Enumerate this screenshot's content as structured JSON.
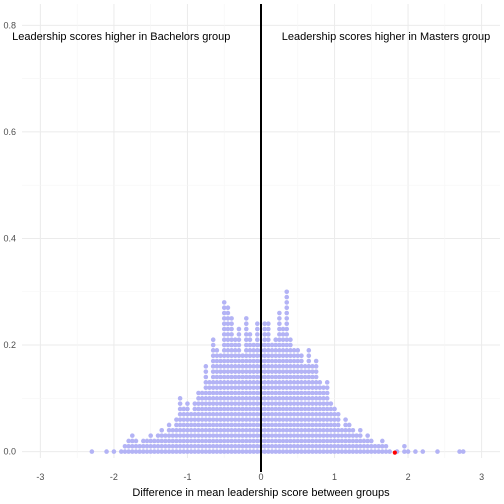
{
  "chart_data": {
    "type": "scatter",
    "subtype": "dotplot",
    "title": "",
    "xlabel": "Difference in mean leadership score between groups",
    "ylabel": "",
    "xlim": [
      -3.25,
      3.25
    ],
    "ylim": [
      -0.012,
      0.84
    ],
    "x_ticks": [
      -3,
      -2,
      -1,
      0,
      1,
      2,
      3
    ],
    "x_tick_labels": [
      "-3",
      "-2",
      "-1",
      "0",
      "1",
      "2",
      "3"
    ],
    "y_ticks": [
      0.0,
      0.2,
      0.4,
      0.6,
      0.8
    ],
    "y_tick_labels": [
      "0.0",
      "0.2",
      "0.4",
      "0.6",
      "0.8"
    ],
    "grid": true,
    "legend": "none",
    "dot_color": "#b3b3f5",
    "highlight_color": "#ff0000",
    "reference_line_x": 0,
    "dot_step": 0.01,
    "bins": [
      {
        "x": -2.3,
        "count": 1
      },
      {
        "x": -2.1,
        "count": 1
      },
      {
        "x": -2.0,
        "count": 1
      },
      {
        "x": -1.9,
        "count": 1
      },
      {
        "x": -1.85,
        "count": 2
      },
      {
        "x": -1.8,
        "count": 3
      },
      {
        "x": -1.75,
        "count": 4
      },
      {
        "x": -1.7,
        "count": 3
      },
      {
        "x": -1.65,
        "count": 2
      },
      {
        "x": -1.6,
        "count": 3
      },
      {
        "x": -1.55,
        "count": 3
      },
      {
        "x": -1.5,
        "count": 4
      },
      {
        "x": -1.45,
        "count": 3
      },
      {
        "x": -1.4,
        "count": 4
      },
      {
        "x": -1.35,
        "count": 5
      },
      {
        "x": -1.3,
        "count": 4
      },
      {
        "x": -1.25,
        "count": 6
      },
      {
        "x": -1.2,
        "count": 5
      },
      {
        "x": -1.15,
        "count": 7
      },
      {
        "x": -1.1,
        "count": 11
      },
      {
        "x": -1.05,
        "count": 9
      },
      {
        "x": -1.0,
        "count": 10
      },
      {
        "x": -0.95,
        "count": 8
      },
      {
        "x": -0.9,
        "count": 10
      },
      {
        "x": -0.85,
        "count": 12
      },
      {
        "x": -0.8,
        "count": 12
      },
      {
        "x": -0.75,
        "count": 17
      },
      {
        "x": -0.7,
        "count": 14
      },
      {
        "x": -0.65,
        "count": 22
      },
      {
        "x": -0.6,
        "count": 20
      },
      {
        "x": -0.55,
        "count": 19
      },
      {
        "x": -0.5,
        "count": 29
      },
      {
        "x": -0.45,
        "count": 28
      },
      {
        "x": -0.4,
        "count": 26
      },
      {
        "x": -0.35,
        "count": 22
      },
      {
        "x": -0.3,
        "count": 24
      },
      {
        "x": -0.25,
        "count": 19
      },
      {
        "x": -0.2,
        "count": 26
      },
      {
        "x": -0.15,
        "count": 23
      },
      {
        "x": -0.1,
        "count": 21
      },
      {
        "x": -0.05,
        "count": 25
      },
      {
        "x": 0.0,
        "count": 21
      },
      {
        "x": 0.05,
        "count": 25
      },
      {
        "x": 0.1,
        "count": 25
      },
      {
        "x": 0.15,
        "count": 21
      },
      {
        "x": 0.2,
        "count": 22
      },
      {
        "x": 0.25,
        "count": 27
      },
      {
        "x": 0.3,
        "count": 24
      },
      {
        "x": 0.35,
        "count": 31
      },
      {
        "x": 0.4,
        "count": 22
      },
      {
        "x": 0.45,
        "count": 20
      },
      {
        "x": 0.5,
        "count": 20
      },
      {
        "x": 0.55,
        "count": 19
      },
      {
        "x": 0.6,
        "count": 17
      },
      {
        "x": 0.65,
        "count": 20
      },
      {
        "x": 0.7,
        "count": 17
      },
      {
        "x": 0.75,
        "count": 18
      },
      {
        "x": 0.8,
        "count": 14
      },
      {
        "x": 0.85,
        "count": 13
      },
      {
        "x": 0.9,
        "count": 14
      },
      {
        "x": 0.95,
        "count": 10
      },
      {
        "x": 1.0,
        "count": 9
      },
      {
        "x": 1.05,
        "count": 8
      },
      {
        "x": 1.1,
        "count": 5
      },
      {
        "x": 1.15,
        "count": 7
      },
      {
        "x": 1.2,
        "count": 6
      },
      {
        "x": 1.25,
        "count": 5
      },
      {
        "x": 1.3,
        "count": 4
      },
      {
        "x": 1.35,
        "count": 5
      },
      {
        "x": 1.4,
        "count": 3
      },
      {
        "x": 1.45,
        "count": 4
      },
      {
        "x": 1.5,
        "count": 3
      },
      {
        "x": 1.55,
        "count": 2
      },
      {
        "x": 1.6,
        "count": 2
      },
      {
        "x": 1.65,
        "count": 3
      },
      {
        "x": 1.7,
        "count": 2
      },
      {
        "x": 1.75,
        "count": 1
      },
      {
        "x": 1.85,
        "count": 1
      },
      {
        "x": 1.95,
        "count": 2
      },
      {
        "x": 2.0,
        "count": 1
      },
      {
        "x": 2.1,
        "count": 1
      },
      {
        "x": 2.2,
        "count": 1
      },
      {
        "x": 2.4,
        "count": 1
      },
      {
        "x": 2.7,
        "count": 1
      },
      {
        "x": 2.75,
        "count": 1
      }
    ],
    "highlight_point": {
      "x": 1.82,
      "y": 0.0
    },
    "annotations": [
      {
        "text": "Leadership scores higher in Bachelors group",
        "x": -1.9,
        "y": 0.78
      },
      {
        "text": "Leadership scores higher in Masters group",
        "x": 1.7,
        "y": 0.78
      }
    ]
  }
}
